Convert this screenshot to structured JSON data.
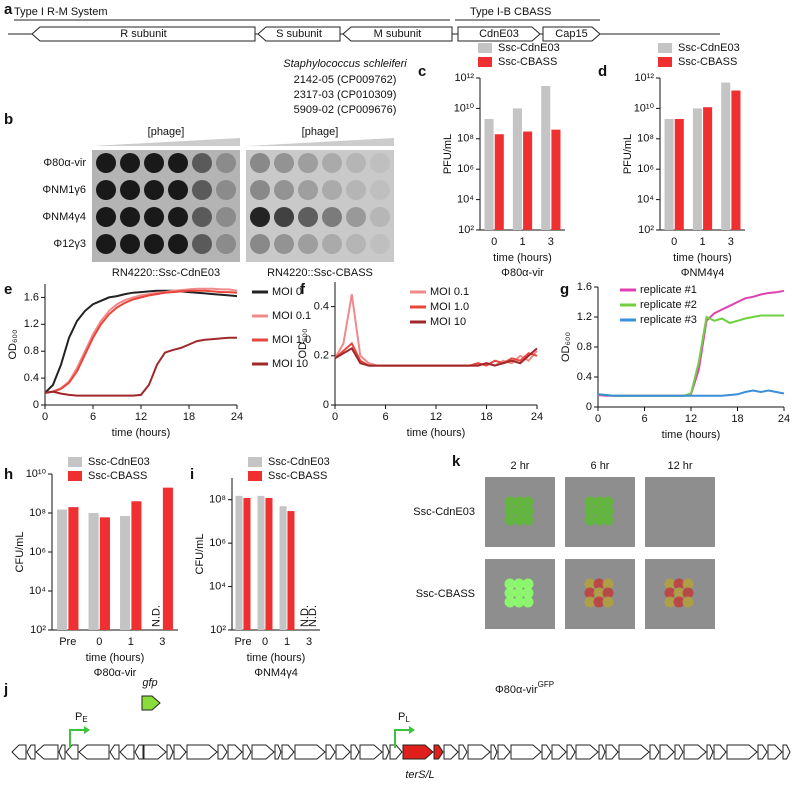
{
  "panel_a": {
    "label": "a",
    "system1": "Type I R-M System",
    "system2": "Type I-B CBASS",
    "genes": [
      "R subunit",
      "S subunit",
      "M subunit",
      "CdnE03",
      "Cap15"
    ]
  },
  "strains": {
    "species": "Staphylococcus schleiferi",
    "lines": [
      "2142-05 (CP009762)",
      "2317-03 (CP010309)",
      "5909-02 (CP009676)"
    ]
  },
  "panel_b": {
    "label": "b",
    "gradient_label": "[phage]",
    "phages": [
      "Φ80α-vir",
      "ΦNM1γ6",
      "ΦNM4γ4",
      "Φ12γ3"
    ],
    "strains": [
      "RN4220::Ssc-CdnE03",
      "RN4220::Ssc-CBASS"
    ]
  },
  "chart_data": [
    {
      "type": "bar",
      "panel": "c",
      "subtitle": "Φ80α-vir",
      "xlabel": "time (hours)",
      "ylabel": "PFU/mL",
      "log_y": true,
      "categories": [
        "0",
        "1",
        "3"
      ],
      "series": [
        {
          "name": "Ssc-CdnE03",
          "color": "#c4c4c4",
          "values": [
            2000000000,
            10000000000,
            300000000000
          ]
        },
        {
          "name": "Ssc-CBASS",
          "color": "#f03030",
          "values": [
            200000000,
            300000000,
            400000000
          ]
        }
      ],
      "ylim": [
        100,
        1000000000000
      ],
      "yticks": [
        {
          "value": 100,
          "label": "10²"
        },
        {
          "value": 10000,
          "label": "10⁴"
        },
        {
          "value": 1000000,
          "label": "10⁶"
        },
        {
          "value": 100000000,
          "label": "10⁸"
        },
        {
          "value": 10000000000,
          "label": "10¹⁰"
        },
        {
          "value": 1000000000000,
          "label": "10¹²"
        }
      ]
    },
    {
      "type": "bar",
      "panel": "d",
      "subtitle": "ΦNM4γ4",
      "xlabel": "time (hours)",
      "ylabel": "PFU/mL",
      "log_y": true,
      "categories": [
        "0",
        "1",
        "3"
      ],
      "series": [
        {
          "name": "Ssc-CdnE03",
          "color": "#c4c4c4",
          "values": [
            2000000000,
            10000000000,
            500000000000
          ]
        },
        {
          "name": "Ssc-CBASS",
          "color": "#f03030",
          "values": [
            2000000000,
            12000000000,
            150000000000
          ]
        }
      ],
      "ylim": [
        100,
        1000000000000
      ],
      "yticks": [
        {
          "value": 100,
          "label": "10²"
        },
        {
          "value": 10000,
          "label": "10⁴"
        },
        {
          "value": 1000000,
          "label": "10⁶"
        },
        {
          "value": 100000000,
          "label": "10⁸"
        },
        {
          "value": 10000000000,
          "label": "10¹⁰"
        },
        {
          "value": 1000000000000,
          "label": "10¹²"
        }
      ]
    },
    {
      "type": "line",
      "panel": "e",
      "xlabel": "time (hours)",
      "ylabel": "OD₆₀₀",
      "x": [
        0,
        1,
        2,
        3,
        4,
        5,
        6,
        7,
        8,
        9,
        10,
        11,
        12,
        13,
        14,
        15,
        16,
        17,
        18,
        19,
        20,
        21,
        22,
        23,
        24
      ],
      "series": [
        {
          "name": "MOI 0",
          "color": "#222222",
          "values": [
            0.18,
            0.3,
            0.6,
            1.0,
            1.25,
            1.4,
            1.5,
            1.55,
            1.6,
            1.62,
            1.65,
            1.67,
            1.68,
            1.69,
            1.7,
            1.7,
            1.7,
            1.69,
            1.68,
            1.67,
            1.66,
            1.65,
            1.64,
            1.63,
            1.62
          ]
        },
        {
          "name": "MOI 0.1",
          "color": "#f08a8a",
          "values": [
            0.18,
            0.2,
            0.25,
            0.35,
            0.55,
            0.8,
            1.05,
            1.25,
            1.4,
            1.5,
            1.56,
            1.6,
            1.63,
            1.65,
            1.67,
            1.68,
            1.7,
            1.71,
            1.72,
            1.73,
            1.73,
            1.73,
            1.72,
            1.72,
            1.7
          ]
        },
        {
          "name": "MOI 1.0",
          "color": "#e8463c",
          "values": [
            0.18,
            0.2,
            0.24,
            0.33,
            0.5,
            0.75,
            1.0,
            1.2,
            1.35,
            1.45,
            1.52,
            1.57,
            1.6,
            1.63,
            1.65,
            1.67,
            1.68,
            1.69,
            1.7,
            1.7,
            1.7,
            1.69,
            1.68,
            1.68,
            1.67
          ]
        },
        {
          "name": "MOI 10",
          "color": "#a0282a",
          "values": [
            0.18,
            0.2,
            0.17,
            0.15,
            0.14,
            0.14,
            0.14,
            0.14,
            0.14,
            0.14,
            0.14,
            0.14,
            0.15,
            0.3,
            0.6,
            0.78,
            0.82,
            0.85,
            0.9,
            0.95,
            0.97,
            0.98,
            0.99,
            1.0,
            1.0
          ]
        }
      ],
      "xlim": [
        0,
        24
      ],
      "xticks": [
        0,
        6,
        12,
        18,
        24
      ],
      "ylim": [
        0,
        1.8
      ],
      "yticks": [
        0,
        0.4,
        0.8,
        1.2,
        1.6
      ]
    },
    {
      "type": "line",
      "panel": "f",
      "xlabel": "time (hours)",
      "ylabel": "OD₆₀₀",
      "x": [
        0,
        1,
        2,
        3,
        4,
        5,
        6,
        7,
        8,
        9,
        10,
        11,
        12,
        13,
        14,
        15,
        16,
        17,
        18,
        19,
        20,
        21,
        22,
        23,
        24
      ],
      "series": [
        {
          "name": "MOI 0.1",
          "color": "#f08a8a",
          "values": [
            0.19,
            0.25,
            0.45,
            0.2,
            0.17,
            0.16,
            0.16,
            0.16,
            0.16,
            0.16,
            0.16,
            0.16,
            0.16,
            0.16,
            0.16,
            0.16,
            0.16,
            0.16,
            0.17,
            0.16,
            0.18,
            0.17,
            0.2,
            0.18,
            0.22
          ]
        },
        {
          "name": "MOI 1.0",
          "color": "#e8463c",
          "values": [
            0.19,
            0.22,
            0.25,
            0.18,
            0.16,
            0.16,
            0.16,
            0.16,
            0.16,
            0.16,
            0.16,
            0.16,
            0.16,
            0.16,
            0.16,
            0.16,
            0.16,
            0.17,
            0.16,
            0.18,
            0.17,
            0.19,
            0.18,
            0.21,
            0.2
          ]
        },
        {
          "name": "MOI 10",
          "color": "#a0282a",
          "values": [
            0.19,
            0.21,
            0.23,
            0.17,
            0.16,
            0.16,
            0.16,
            0.16,
            0.16,
            0.16,
            0.16,
            0.16,
            0.16,
            0.16,
            0.16,
            0.16,
            0.16,
            0.16,
            0.17,
            0.16,
            0.17,
            0.18,
            0.17,
            0.2,
            0.23
          ]
        }
      ],
      "xlim": [
        0,
        24
      ],
      "xticks": [
        0,
        6,
        12,
        18,
        24
      ],
      "ylim": [
        0,
        0.5
      ],
      "yticks": [
        0,
        0.2,
        0.4
      ]
    },
    {
      "type": "line",
      "panel": "g",
      "xlabel": "time (hours)",
      "ylabel": "OD₆₀₀",
      "x": [
        0,
        1,
        2,
        3,
        4,
        5,
        6,
        7,
        8,
        9,
        10,
        11,
        12,
        13,
        14,
        15,
        16,
        17,
        18,
        19,
        20,
        21,
        22,
        23,
        24
      ],
      "series": [
        {
          "name": "replicate #1",
          "color": "#e040b0",
          "values": [
            0.16,
            0.15,
            0.15,
            0.15,
            0.15,
            0.15,
            0.15,
            0.15,
            0.15,
            0.15,
            0.15,
            0.15,
            0.17,
            0.5,
            1.15,
            1.25,
            1.3,
            1.35,
            1.4,
            1.45,
            1.47,
            1.5,
            1.52,
            1.53,
            1.55
          ]
        },
        {
          "name": "replicate #2",
          "color": "#70d040",
          "values": [
            0.17,
            0.16,
            0.15,
            0.15,
            0.15,
            0.15,
            0.15,
            0.15,
            0.15,
            0.15,
            0.15,
            0.15,
            0.18,
            0.6,
            1.2,
            1.15,
            1.18,
            1.12,
            1.15,
            1.18,
            1.2,
            1.22,
            1.22,
            1.22,
            1.22
          ]
        },
        {
          "name": "replicate #3",
          "color": "#3b8fd8",
          "values": [
            0.17,
            0.16,
            0.15,
            0.15,
            0.15,
            0.15,
            0.15,
            0.15,
            0.15,
            0.15,
            0.15,
            0.15,
            0.15,
            0.15,
            0.15,
            0.15,
            0.15,
            0.16,
            0.17,
            0.2,
            0.22,
            0.2,
            0.22,
            0.2,
            0.18
          ]
        }
      ],
      "xlim": [
        0,
        24
      ],
      "xticks": [
        0,
        6,
        12,
        18,
        24
      ],
      "ylim": [
        0,
        1.6
      ],
      "yticks": [
        0,
        0.4,
        0.8,
        1.2,
        1.6
      ]
    },
    {
      "type": "bar",
      "panel": "h",
      "subtitle": "Φ80α-vir",
      "xlabel": "time (hours)",
      "ylabel": "CFU/mL",
      "log_y": true,
      "categories": [
        "Pre",
        "0",
        "1",
        "3"
      ],
      "series": [
        {
          "name": "Ssc-CdnE03",
          "color": "#c4c4c4",
          "values": [
            150000000,
            100000000,
            70000000,
            null
          ],
          "value_labels": [
            null,
            null,
            null,
            "N.D."
          ]
        },
        {
          "name": "Ssc-CBASS",
          "color": "#f03030",
          "values": [
            200000000,
            60000000,
            400000000,
            2000000000
          ]
        }
      ],
      "ylim": [
        100,
        10000000000
      ],
      "yticks": [
        {
          "value": 100,
          "label": "10²"
        },
        {
          "value": 10000,
          "label": "10⁴"
        },
        {
          "value": 1000000,
          "label": "10⁶"
        },
        {
          "value": 100000000,
          "label": "10⁸"
        },
        {
          "value": 10000000000,
          "label": "10¹⁰"
        }
      ]
    },
    {
      "type": "bar",
      "panel": "i",
      "subtitle": "ΦNM4γ4",
      "xlabel": "time (hours)",
      "ylabel": "CFU/mL",
      "log_y": true,
      "categories": [
        "Pre",
        "0",
        "1",
        "3"
      ],
      "series": [
        {
          "name": "Ssc-CdnE03",
          "color": "#c4c4c4",
          "values": [
            150000000,
            150000000,
            50000000,
            null
          ],
          "value_labels": [
            null,
            null,
            null,
            "N.D."
          ]
        },
        {
          "name": "Ssc-CBASS",
          "color": "#f03030",
          "values": [
            120000000,
            120000000,
            30000000,
            null
          ],
          "value_labels": [
            null,
            null,
            null,
            "N.D."
          ]
        }
      ],
      "ylim": [
        100,
        1000000000
      ],
      "yticks": [
        {
          "value": 100,
          "label": "10²"
        },
        {
          "value": 10000,
          "label": "10⁴"
        },
        {
          "value": 1000000,
          "label": "10⁶"
        },
        {
          "value": 100000000,
          "label": "10⁸"
        }
      ]
    }
  ],
  "panel_k": {
    "label": "k",
    "times": [
      "2 hr",
      "6 hr",
      "12 hr"
    ],
    "strains": [
      "Ssc-CdnE03",
      "Ssc-CBASS"
    ]
  },
  "panel_j": {
    "label": "j",
    "phage": "Φ80α-vir",
    "phage_sup": "GFP",
    "gfp": "gfp",
    "promoters": [
      {
        "text": "P",
        "sub": "E"
      },
      {
        "text": "P",
        "sub": "L"
      }
    ],
    "gene": "terS/L"
  }
}
